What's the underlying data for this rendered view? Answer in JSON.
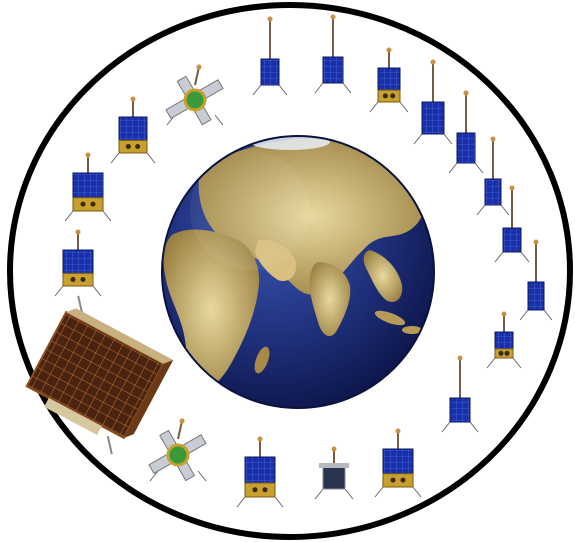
{
  "scene": {
    "background": "#ffffff",
    "ring_color": "#000000",
    "ocean_color": "#1e2e78",
    "land_color": "#c8b070",
    "satellite_panel_color": "#1a30a8",
    "satellite_body_color": "#c8a030",
    "satellite_count": 20
  }
}
